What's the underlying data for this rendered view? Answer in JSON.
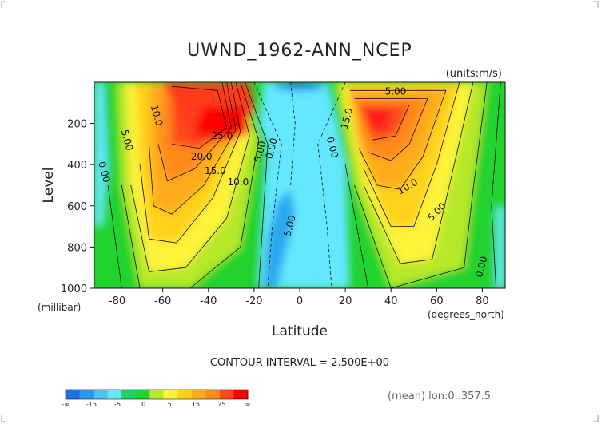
{
  "chart_data": {
    "type": "heatmap",
    "title": "UWND_1962-ANN_NCEP",
    "units_label": "(units:m/s)",
    "xlabel": "Latitude",
    "ylabel": "Level",
    "x_unit_label": "(degrees_north)",
    "y_unit_label": "(millibar)",
    "xlim": [
      -90,
      90
    ],
    "ylim": [
      1000,
      0
    ],
    "x_ticks": [
      -80,
      -60,
      -40,
      -20,
      0,
      20,
      40,
      60,
      80
    ],
    "y_ticks": [
      200,
      400,
      600,
      800,
      1000
    ],
    "contour_interval_text": "CONTOUR INTERVAL = 2.500E+00",
    "mean_note": "(mean) lon:0..357.5",
    "jets": [
      {
        "lat": -30,
        "level": 190,
        "peak": 27.5
      },
      {
        "lat": 33,
        "level": 180,
        "peak": 27.0
      }
    ],
    "contour_labels": [
      {
        "text": "10.0",
        "x": -64,
        "y": 165,
        "rot": 75
      },
      {
        "text": "5.00",
        "x": -77,
        "y": 285,
        "rot": 75
      },
      {
        "text": "0.00",
        "x": -87,
        "y": 440,
        "rot": 75
      },
      {
        "text": "25.0",
        "x": -34,
        "y": 275,
        "rot": 0
      },
      {
        "text": "20.0",
        "x": -43,
        "y": 375,
        "rot": 0
      },
      {
        "text": "15.0",
        "x": -37,
        "y": 445,
        "rot": 0
      },
      {
        "text": "10.0",
        "x": -27,
        "y": 500,
        "rot": 0
      },
      {
        "text": "5.00",
        "x": -16,
        "y": 340,
        "rot": -75
      },
      {
        "text": "0.00",
        "x": -11,
        "y": 325,
        "rot": -75
      },
      {
        "text": "5.00",
        "x": -3,
        "y": 700,
        "rot": -75
      },
      {
        "text": "0.00",
        "x": 13,
        "y": 320,
        "rot": 75
      },
      {
        "text": "5.00",
        "x": 42,
        "y": 60,
        "rot": 0
      },
      {
        "text": "15.0",
        "x": 22,
        "y": 180,
        "rot": -75
      },
      {
        "text": "10.0",
        "x": 48,
        "y": 520,
        "rot": -30
      },
      {
        "text": "5.00",
        "x": 61,
        "y": 640,
        "rot": -45
      },
      {
        "text": "0.00",
        "x": 81,
        "y": 900,
        "rot": -75
      }
    ],
    "colorbar": {
      "labels": [
        "-∞",
        "-15",
        "-5",
        "0",
        "5",
        "15",
        "25",
        "∞"
      ],
      "colors": [
        "#1f6fe6",
        "#2b98f0",
        "#4fc2f5",
        "#63e8ff",
        "#22d36a",
        "#22d32e",
        "#b6e82c",
        "#fff33a",
        "#ffd21a",
        "#ffac1e",
        "#ff8a1a",
        "#ff4a1a",
        "#ff0000"
      ]
    },
    "grid": false
  }
}
